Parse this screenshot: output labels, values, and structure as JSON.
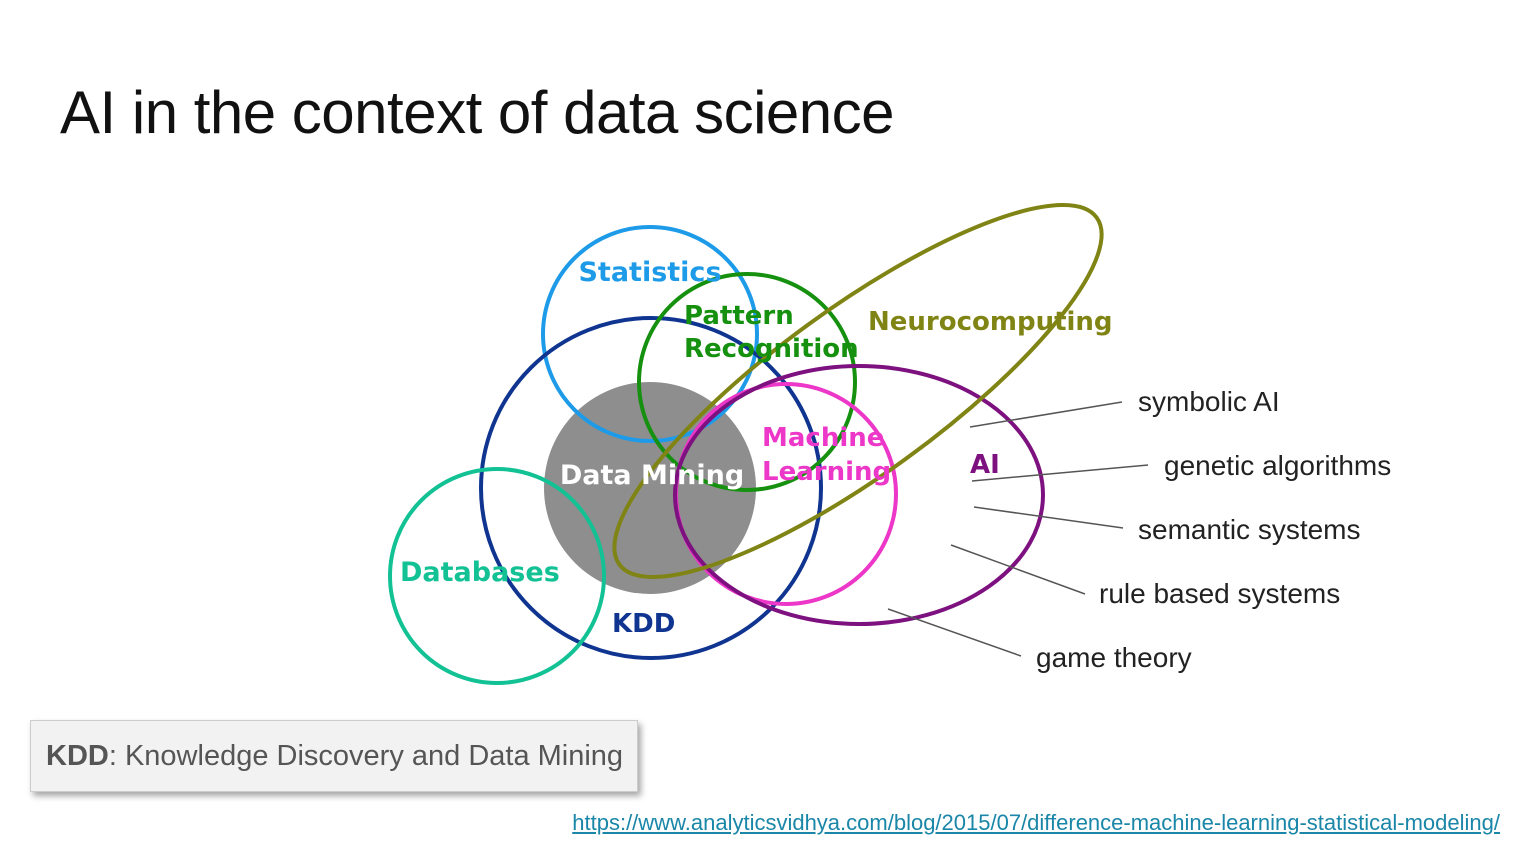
{
  "slide": {
    "title": "AI in the context of data science"
  },
  "diagram": {
    "sets": {
      "statistics": "Statistics",
      "pattern_recognition_line1": "Pattern",
      "pattern_recognition_line2": "Recognition",
      "neurocomputing": "Neurocomputing",
      "data_mining": "Data Mining",
      "machine_learning_line1": "Machine",
      "machine_learning_line2": "Learning",
      "ai": "AI",
      "databases": "Databases",
      "kdd": "KDD"
    },
    "colors": {
      "statistics": "#1e9be8",
      "pattern_recognition": "#15900f",
      "neurocomputing": "#7f8414",
      "data_mining": "#8e8e8e",
      "machine_learning": "#ec37c8",
      "ai": "#7e1180",
      "databases": "#12c194",
      "kdd": "#0f3591"
    },
    "ai_subfields": [
      "symbolic AI",
      "genetic algorithms",
      "semantic systems",
      "rule based systems",
      "game theory"
    ]
  },
  "callout": {
    "abbr": "KDD",
    "definition": ": Knowledge Discovery and Data Mining"
  },
  "source": {
    "url": "https://www.analyticsvidhya.com/blog/2015/07/difference-machine-learning-statistical-modeling/"
  }
}
